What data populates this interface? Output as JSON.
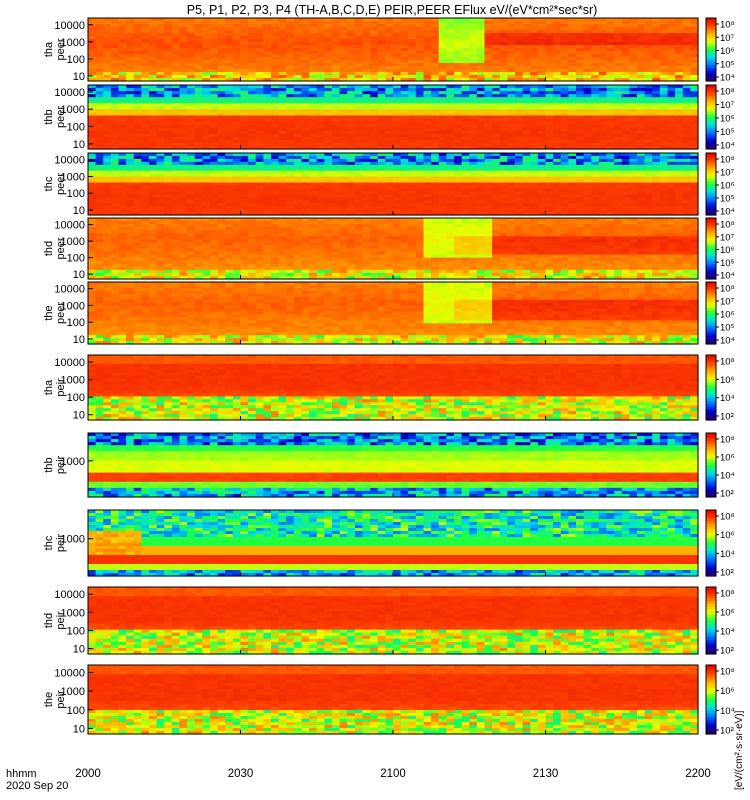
{
  "title": "P5, P1, P2, P3, P4 (TH-A,B,C,D,E) PEIR,PEER EFlux eV/(eV*cm²*sec*sr)",
  "time_axis": {
    "header_line1": "hhmm",
    "header_line2": "2020 Sep 20",
    "tick_labels": [
      "2000",
      "2030",
      "2100",
      "2130",
      "2200"
    ],
    "tick_minutes": [
      0,
      30,
      60,
      90,
      120
    ],
    "range_minutes": [
      0,
      120
    ]
  },
  "colorbar_tick_labels": [
    "10⁸",
    "10⁶",
    "10⁴",
    "10²"
  ],
  "colorbar_tick_labels_dense": [
    "10⁸",
    "10⁷",
    "10⁶",
    "10⁵",
    "10⁴",
    "10³"
  ],
  "colorbar_title": "[eV/(cm²·s·sr·eV)]",
  "colors": {
    "colormap": [
      "#2a0060",
      "#0000cc",
      "#0070ff",
      "#00e0e0",
      "#20ff40",
      "#e8ff00",
      "#ffb000",
      "#ff4000",
      "#e00000"
    ],
    "frame": "#000000"
  },
  "chart_data": {
    "type": "heatmap",
    "x_unit": "minutes after 20:00 UT",
    "scale": "log",
    "panels": [
      {
        "name_line1": "tha",
        "name_line2": "peer",
        "y_ticks": [
          "10000",
          "1000",
          "100",
          "10"
        ],
        "y_exp": [
          4,
          3,
          2,
          1
        ],
        "ylim_exp": [
          0.7,
          4.4
        ],
        "profile": "peer_a"
      },
      {
        "name_line1": "thb",
        "name_line2": "peer",
        "y_ticks": [
          "10000",
          "1000",
          "100",
          "10"
        ],
        "y_exp": [
          4,
          3,
          2,
          1
        ],
        "ylim_exp": [
          0.7,
          4.4
        ],
        "profile": "peer_b"
      },
      {
        "name_line1": "thc",
        "name_line2": "peer",
        "y_ticks": [
          "10000",
          "1000",
          "100",
          "10"
        ],
        "y_exp": [
          4,
          3,
          2,
          1
        ],
        "ylim_exp": [
          0.7,
          4.4
        ],
        "profile": "peer_b"
      },
      {
        "name_line1": "thd",
        "name_line2": "peer",
        "y_ticks": [
          "10000",
          "1000",
          "100",
          "10"
        ],
        "y_exp": [
          4,
          3,
          2,
          1
        ],
        "ylim_exp": [
          0.7,
          4.4
        ],
        "profile": "peer_d"
      },
      {
        "name_line1": "the",
        "name_line2": "peer",
        "y_ticks": [
          "10000",
          "1000",
          "100",
          "10"
        ],
        "y_exp": [
          4,
          3,
          2,
          1
        ],
        "ylim_exp": [
          0.7,
          4.4
        ],
        "profile": "peer_d"
      },
      {
        "name_line1": "tha",
        "name_line2": "peir",
        "y_ticks": [
          "10000",
          "1000",
          "100",
          "10"
        ],
        "y_exp": [
          4,
          3,
          2,
          1
        ],
        "ylim_exp": [
          0.7,
          4.4
        ],
        "profile": "peir_a"
      },
      {
        "name_line1": "thb",
        "name_line2": "peir",
        "y_ticks": [
          "1000"
        ],
        "y_exp": [
          3
        ],
        "ylim_exp": [
          1.7,
          4.0
        ],
        "profile": "peir_b"
      },
      {
        "name_line1": "thc",
        "name_line2": "peir",
        "y_ticks": [
          "1000"
        ],
        "y_exp": [
          3
        ],
        "ylim_exp": [
          1.7,
          4.0
        ],
        "profile": "peir_c"
      },
      {
        "name_line1": "thd",
        "name_line2": "peir",
        "y_ticks": [
          "10000",
          "1000",
          "100",
          "10"
        ],
        "y_exp": [
          4,
          3,
          2,
          1
        ],
        "ylim_exp": [
          0.7,
          4.4
        ],
        "profile": "peir_a"
      },
      {
        "name_line1": "the",
        "name_line2": "peir",
        "y_ticks": [
          "10000",
          "1000",
          "100",
          "10"
        ],
        "y_exp": [
          4,
          3,
          2,
          1
        ],
        "ylim_exp": [
          0.7,
          4.4
        ],
        "profile": "peir_a"
      }
    ]
  }
}
